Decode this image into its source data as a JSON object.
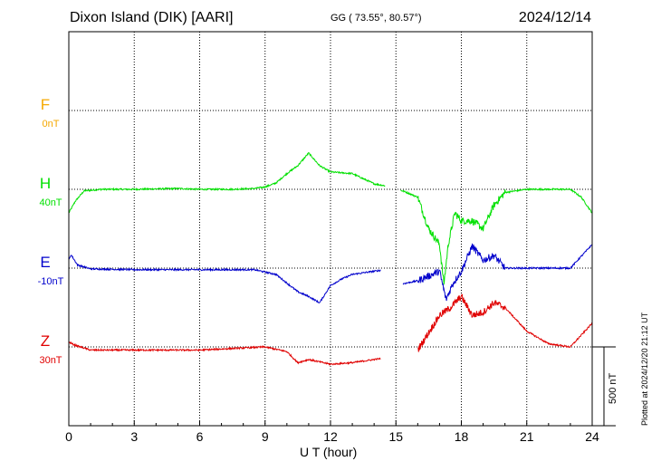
{
  "header": {
    "station": "Dixon Island (DIK)  [AARI]",
    "coords": "GG ( 73.55°,  80.57°)",
    "date": "2024/12/14"
  },
  "side_note": "Plotted at 2024/12/20 21:12 UT",
  "scale_bar": {
    "label": "500 nT",
    "nT": 500
  },
  "chart_data": {
    "type": "line",
    "xlabel": "U T (hour)",
    "xlim": [
      0,
      24
    ],
    "x_ticks": [
      0,
      3,
      6,
      9,
      12,
      15,
      18,
      21,
      24
    ],
    "grid": true,
    "components": [
      {
        "name": "F",
        "offset": "0nT",
        "color": "#f5a800"
      },
      {
        "name": "H",
        "offset": "40nT",
        "color": "#00e000"
      },
      {
        "name": "E",
        "offset": "-10nT",
        "color": "#0000cc"
      },
      {
        "name": "Z",
        "offset": "30nT",
        "color": "#e00000"
      }
    ],
    "series": [
      {
        "name": "H",
        "units": "nT relative to baseline",
        "points": [
          [
            0,
            -150
          ],
          [
            0.3,
            -75
          ],
          [
            0.7,
            -10
          ],
          [
            1.5,
            0
          ],
          [
            3,
            0
          ],
          [
            5,
            5
          ],
          [
            6,
            0
          ],
          [
            7.5,
            0
          ],
          [
            8.5,
            5
          ],
          [
            9,
            15
          ],
          [
            9.5,
            40
          ],
          [
            10,
            100
          ],
          [
            10.5,
            150
          ],
          [
            11,
            230
          ],
          [
            11.5,
            150
          ],
          [
            12,
            110
          ],
          [
            13,
            100
          ],
          [
            14,
            35
          ],
          [
            14.8,
            15
          ],
          [
            15.5,
            -20
          ],
          [
            16,
            -50
          ],
          [
            16.5,
            -250
          ],
          [
            17,
            -350
          ],
          [
            17.2,
            -600
          ],
          [
            17.4,
            -350
          ],
          [
            17.7,
            -150
          ],
          [
            18,
            -200
          ],
          [
            18.5,
            -200
          ],
          [
            19,
            -250
          ],
          [
            19.5,
            -100
          ],
          [
            20,
            -20
          ],
          [
            21,
            0
          ],
          [
            23,
            0
          ],
          [
            23.5,
            -50
          ],
          [
            24,
            -150
          ]
        ],
        "gaps": [
          [
            14.5,
            15.2
          ]
        ]
      },
      {
        "name": "E",
        "units": "nT relative to baseline",
        "points": [
          [
            0,
            50
          ],
          [
            0.1,
            85
          ],
          [
            0.4,
            20
          ],
          [
            1,
            -5
          ],
          [
            3,
            -10
          ],
          [
            6,
            -10
          ],
          [
            8.5,
            -10
          ],
          [
            9.5,
            -40
          ],
          [
            10.5,
            -150
          ],
          [
            11,
            -180
          ],
          [
            11.5,
            -220
          ],
          [
            12,
            -110
          ],
          [
            12.5,
            -70
          ],
          [
            13,
            -40
          ],
          [
            14,
            -20
          ],
          [
            14.5,
            -10
          ],
          [
            15.3,
            -100
          ],
          [
            16,
            -80
          ],
          [
            17,
            -20
          ],
          [
            17.3,
            -200
          ],
          [
            17.6,
            -100
          ],
          [
            18,
            -20
          ],
          [
            18.5,
            140
          ],
          [
            19,
            50
          ],
          [
            19.5,
            80
          ],
          [
            20,
            0
          ],
          [
            21,
            0
          ],
          [
            23,
            0
          ],
          [
            24,
            150
          ]
        ],
        "gaps": [
          [
            14.3,
            15.3
          ]
        ]
      },
      {
        "name": "Z",
        "units": "nT relative to baseline",
        "points": [
          [
            0,
            30
          ],
          [
            0.3,
            10
          ],
          [
            1,
            -20
          ],
          [
            3,
            -20
          ],
          [
            6,
            -20
          ],
          [
            9,
            0
          ],
          [
            10,
            -30
          ],
          [
            10.5,
            -100
          ],
          [
            11,
            -80
          ],
          [
            12,
            -110
          ],
          [
            13,
            -100
          ],
          [
            14,
            -80
          ],
          [
            15,
            -60
          ],
          [
            16,
            -20
          ],
          [
            17,
            200
          ],
          [
            17.5,
            250
          ],
          [
            18,
            320
          ],
          [
            18.5,
            200
          ],
          [
            19,
            220
          ],
          [
            19.5,
            280
          ],
          [
            20,
            250
          ],
          [
            21,
            100
          ],
          [
            22,
            20
          ],
          [
            23,
            0
          ],
          [
            24,
            150
          ]
        ],
        "gaps": [
          [
            14.3,
            16
          ]
        ]
      }
    ]
  }
}
